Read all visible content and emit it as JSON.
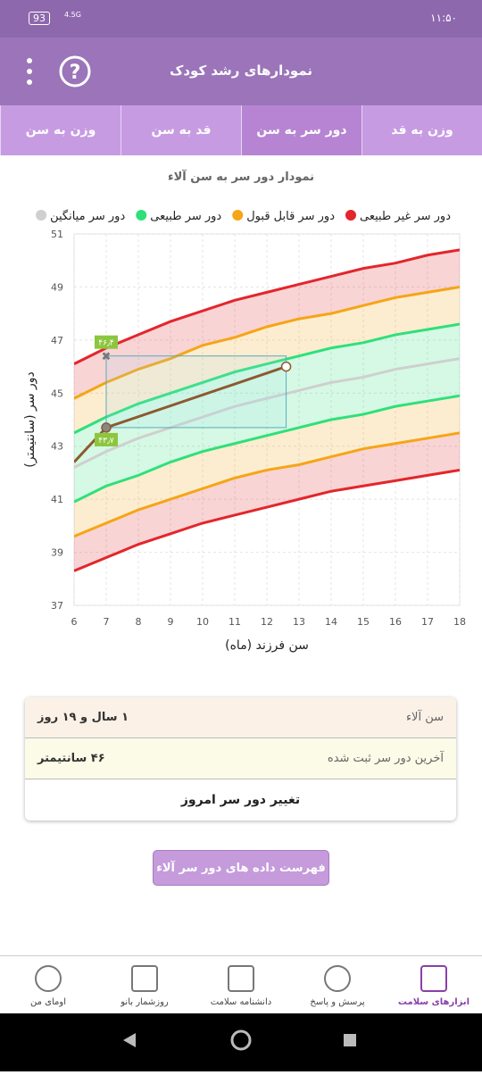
{
  "status_bar": {
    "battery": "93",
    "network": "4.5G",
    "time": "۱۱:۵۰"
  },
  "app_bar": {
    "title": "نمودارهای رشد کودک"
  },
  "tabs": {
    "items": [
      "وزن به سن",
      "قد به سن",
      "دور سر به سن",
      "وزن به قد"
    ],
    "active": 2
  },
  "chart_data": {
    "type": "line",
    "title": "نمودار دور سر به سن آلاء",
    "x_label": "سن فرزند (ماه)",
    "y_label": "دور سر (سانتیمتر)",
    "xlim": [
      6,
      18
    ],
    "ylim": [
      37,
      51
    ],
    "xticks": [
      6,
      7,
      8,
      9,
      10,
      11,
      12,
      13,
      14,
      15,
      16,
      17,
      18
    ],
    "yticks": [
      37,
      39,
      41,
      43,
      45,
      47,
      49,
      51
    ],
    "grid": true,
    "x": [
      6,
      7,
      8,
      9,
      10,
      11,
      12,
      13,
      14,
      15,
      16,
      17,
      18
    ],
    "series": [
      {
        "name": "دور سر غیر طبیعی",
        "color": "#e3262b",
        "values": [
          46.1,
          46.7,
          47.2,
          47.7,
          48.1,
          48.5,
          48.8,
          49.1,
          49.4,
          49.7,
          49.9,
          50.2,
          50.4
        ],
        "lower_values": [
          38.3,
          38.8,
          39.3,
          39.7,
          40.1,
          40.4,
          40.7,
          41.0,
          41.3,
          41.5,
          41.7,
          41.9,
          42.1
        ]
      },
      {
        "name": "دور سر قابل قبول",
        "color": "#f5a516",
        "values": [
          44.8,
          45.4,
          45.9,
          46.3,
          46.8,
          47.1,
          47.5,
          47.8,
          48.0,
          48.3,
          48.6,
          48.8,
          49.0
        ],
        "lower_values": [
          39.6,
          40.1,
          40.6,
          41.0,
          41.4,
          41.8,
          42.1,
          42.3,
          42.6,
          42.9,
          43.1,
          43.3,
          43.5
        ]
      },
      {
        "name": "دور سر طبیعی",
        "color": "#2fe07a",
        "values": [
          43.5,
          44.1,
          44.6,
          45.0,
          45.4,
          45.8,
          46.1,
          46.4,
          46.7,
          46.9,
          47.2,
          47.4,
          47.6
        ],
        "lower_values": [
          40.9,
          41.5,
          41.9,
          42.4,
          42.8,
          43.1,
          43.4,
          43.7,
          44.0,
          44.2,
          44.5,
          44.7,
          44.9
        ]
      },
      {
        "name": "دور سر میانگین",
        "color": "#cfcfcf",
        "values": [
          42.2,
          42.8,
          43.3,
          43.7,
          44.1,
          44.5,
          44.8,
          45.1,
          45.4,
          45.6,
          45.9,
          46.1,
          46.3
        ]
      }
    ],
    "measurements": {
      "x": [
        6,
        7,
        12.6
      ],
      "values": [
        42.4,
        43.7,
        46
      ],
      "value_labels": [
        null,
        "۴۳٫۷",
        null
      ],
      "color": "#8c5a2e"
    },
    "highlight": {
      "x": 7,
      "value": 46.4,
      "label": "۴۶٫۴"
    }
  },
  "info_card": {
    "rows": [
      [
        "سن آلاء",
        "۱ سال و ۱۹ روز"
      ],
      [
        "آخرین دور سر ثبت شده",
        "۴۶ سانتیمتر"
      ]
    ],
    "action": "تغییر دور سر امروز"
  },
  "list_button": "فهرست داده های دور سر آلاء",
  "bottom_nav": {
    "items": [
      "ابزارهای سلامت",
      "پرسش و پاسخ",
      "دانشنامه سلامت",
      "روزشمار بانو",
      "اومای من"
    ],
    "active": 0
  }
}
